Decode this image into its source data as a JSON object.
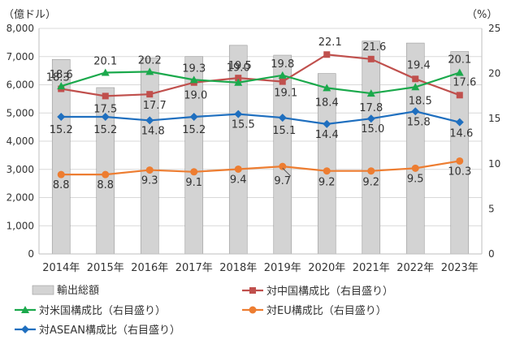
{
  "chart_data": {
    "type": "bar",
    "unit_left": "（億ドル）",
    "unit_right": "（%）",
    "categories": [
      "2014年",
      "2015年",
      "2016年",
      "2017年",
      "2018年",
      "2019年",
      "2020年",
      "2021年",
      "2022年",
      "2023年"
    ],
    "ylim_left": [
      0,
      8000
    ],
    "ylim_right": [
      0,
      25
    ],
    "yticks_left": [
      "0",
      "1,000",
      "2,000",
      "3,000",
      "4,000",
      "5,000",
      "6,000",
      "7,000",
      "8,000"
    ],
    "yticks_right": [
      "0",
      "5",
      "10",
      "15",
      "20",
      "25"
    ],
    "bars": {
      "name": "輸出総額",
      "values": [
        6900,
        5900,
        6950,
        7000,
        7400,
        7050,
        6400,
        7550,
        7480,
        7180
      ],
      "color": "#d3d3d3"
    },
    "series": [
      {
        "name": "対中国構成比（右目盛り）",
        "axis": "right",
        "color": "#c0504d",
        "marker": "square",
        "values": [
          18.3,
          17.5,
          17.7,
          19.0,
          19.5,
          19.1,
          22.1,
          21.6,
          19.4,
          17.6
        ],
        "labels": [
          "18.3",
          "17.5",
          "17.7",
          "19.0",
          "19.5",
          "19.1",
          "22.1",
          "21.6",
          "19.4",
          "17.6"
        ]
      },
      {
        "name": "対米国構成比（右目盛り）",
        "axis": "right",
        "color": "#1ba94c",
        "marker": "triangle",
        "values": [
          18.6,
          20.1,
          20.2,
          19.3,
          19.0,
          19.8,
          18.4,
          17.8,
          18.5,
          20.1
        ],
        "labels": [
          "18.6",
          "20.1",
          "20.2",
          "19.3",
          "19.0",
          "19.8",
          "18.4",
          "17.8",
          "18.5",
          "20.1"
        ]
      },
      {
        "name": "対EU構成比（右目盛り）",
        "axis": "right",
        "color": "#ed7d31",
        "marker": "circle",
        "values": [
          8.8,
          8.8,
          9.3,
          9.1,
          9.4,
          9.7,
          9.2,
          9.2,
          9.5,
          10.3
        ],
        "labels": [
          "8.8",
          "8.8",
          "9.3",
          "9.1",
          "9.4",
          "9.7",
          "9.2",
          "9.2",
          "9.5",
          "10.3"
        ]
      },
      {
        "name": "対ASEAN構成比（右目盛り）",
        "axis": "right",
        "color": "#1f6fbf",
        "marker": "diamond",
        "values": [
          15.2,
          15.2,
          14.8,
          15.2,
          15.5,
          15.1,
          14.4,
          15.0,
          15.8,
          14.6
        ],
        "labels": [
          "15.2",
          "15.2",
          "14.8",
          "15.2",
          "15.5",
          "15.1",
          "14.4",
          "15.0",
          "15.8",
          "14.6"
        ]
      }
    ],
    "grid": true,
    "legend_position": "bottom"
  }
}
